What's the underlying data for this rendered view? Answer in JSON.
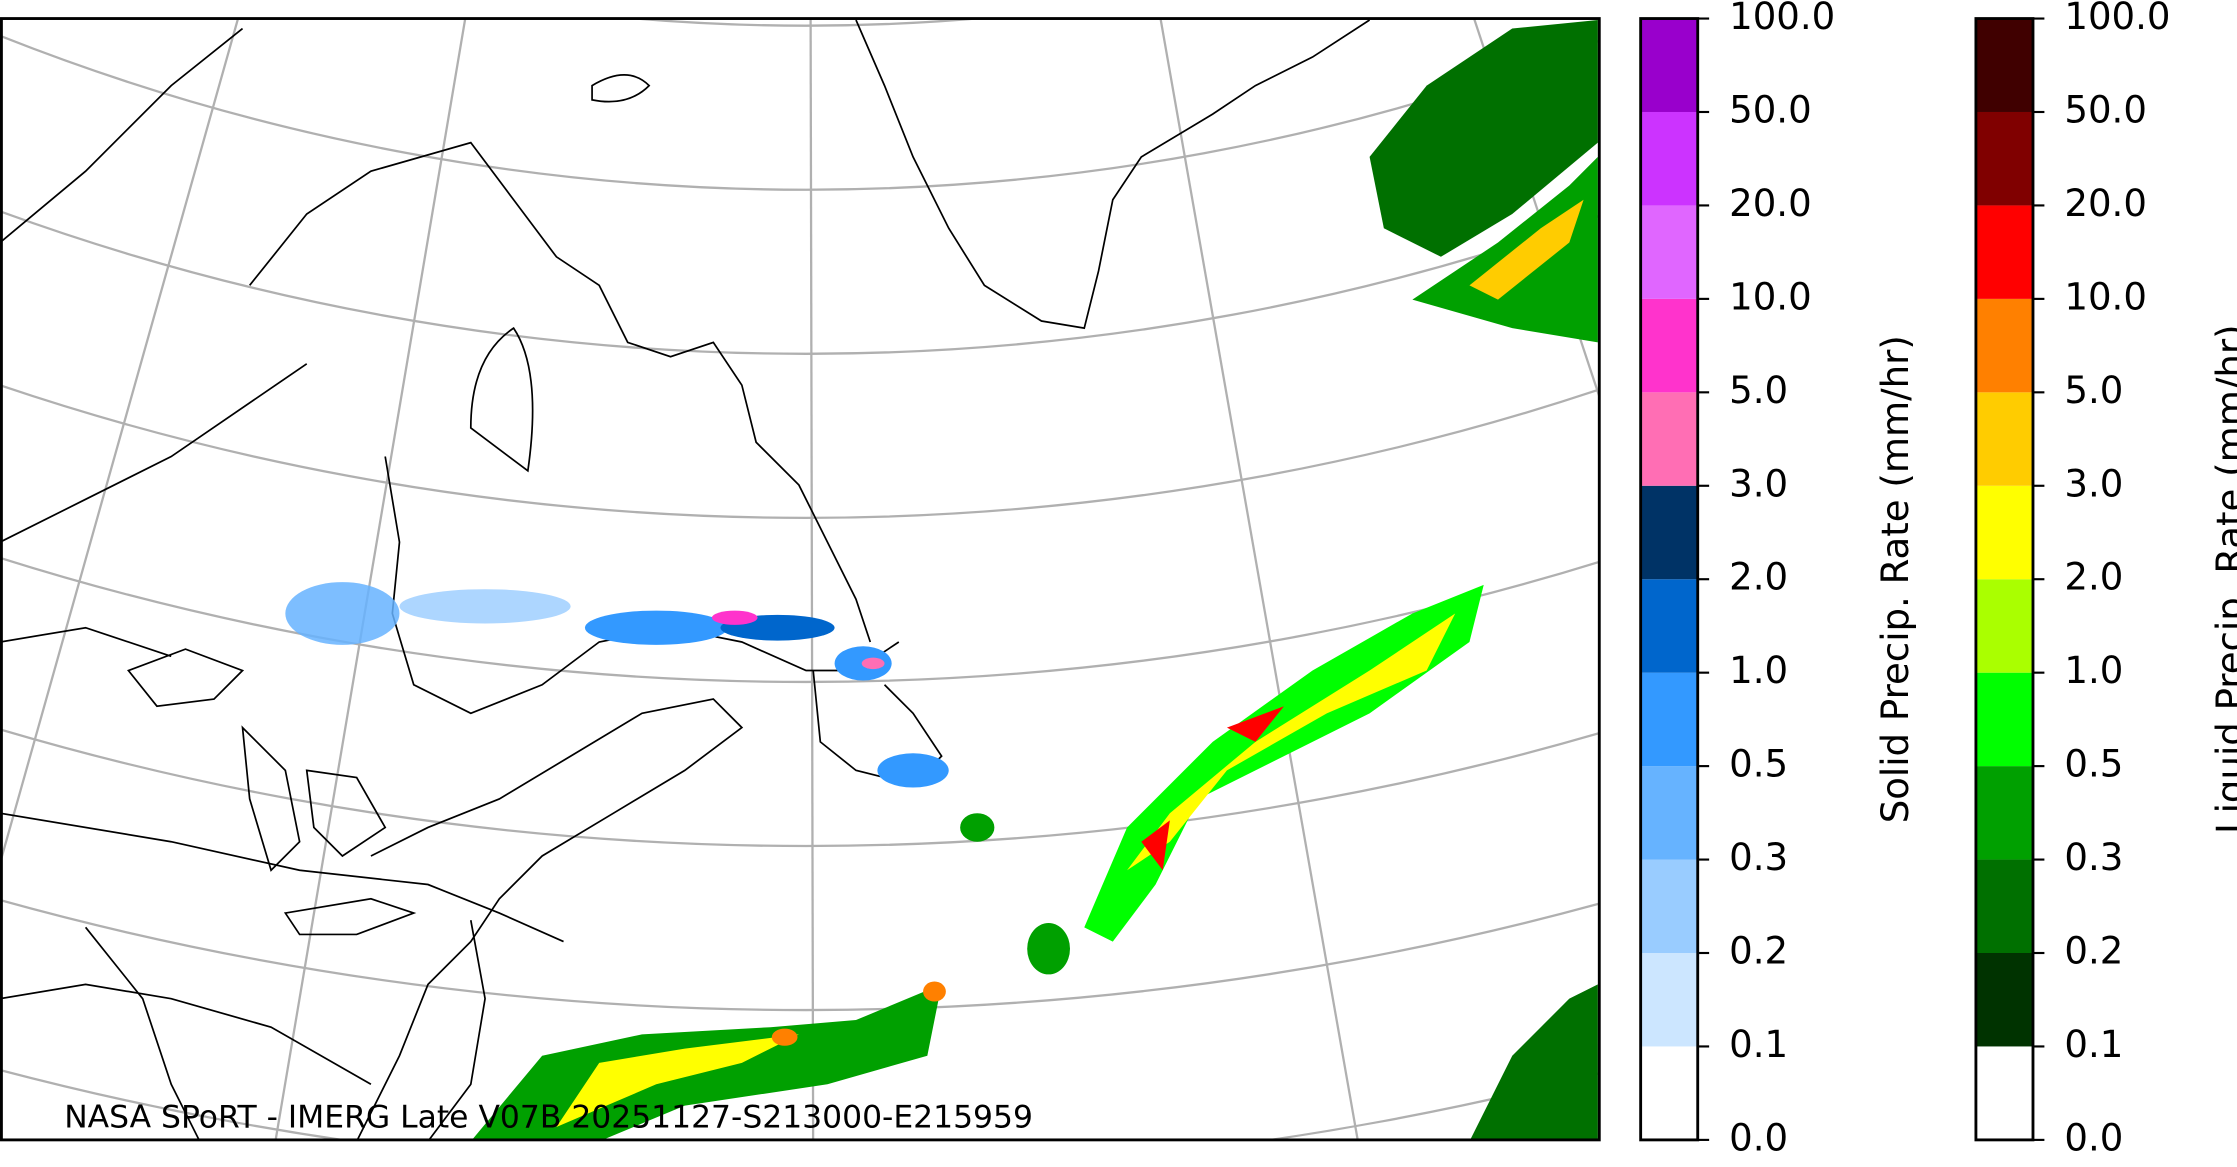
{
  "caption": "NASA SPoRT - IMERG Late V07B 20251127-S213000-E215959",
  "colorbars": [
    {
      "label": "Solid Precip. Rate (mm/hr)",
      "ticks": [
        {
          "value": 0,
          "label": "0.0"
        },
        {
          "value": 0.1,
          "label": "0.1"
        },
        {
          "value": 0.2,
          "label": "0.2"
        },
        {
          "value": 0.3,
          "label": "0.3"
        },
        {
          "value": 0.5,
          "label": "0.5"
        },
        {
          "value": 1,
          "label": "1.0"
        },
        {
          "value": 2,
          "label": "2.0"
        },
        {
          "value": 3,
          "label": "3.0"
        },
        {
          "value": 5,
          "label": "5.0"
        },
        {
          "value": 10,
          "label": "10.0"
        },
        {
          "value": 20,
          "label": "20.0"
        },
        {
          "value": 50,
          "label": "50.0"
        },
        {
          "value": 100,
          "label": "100.0"
        }
      ],
      "colors": [
        "#ffffff",
        "#cce6ff",
        "#99ccff",
        "#66b3ff",
        "#3399ff",
        "#0066cc",
        "#003366",
        "#ff6eb4",
        "#ff33cc",
        "#e066ff",
        "#cc33ff",
        "#9900cc"
      ]
    },
    {
      "label": "Liquid Precip. Rate (mm/hr)",
      "ticks": [
        {
          "value": 0,
          "label": "0.0"
        },
        {
          "value": 0.1,
          "label": "0.1"
        },
        {
          "value": 0.2,
          "label": "0.2"
        },
        {
          "value": 0.3,
          "label": "0.3"
        },
        {
          "value": 0.5,
          "label": "0.5"
        },
        {
          "value": 1,
          "label": "1.0"
        },
        {
          "value": 2,
          "label": "2.0"
        },
        {
          "value": 3,
          "label": "3.0"
        },
        {
          "value": 5,
          "label": "5.0"
        },
        {
          "value": 10,
          "label": "10.0"
        },
        {
          "value": 20,
          "label": "20.0"
        },
        {
          "value": 50,
          "label": "50.0"
        },
        {
          "value": 100,
          "label": "100.0"
        }
      ],
      "colors": [
        "#ffffff",
        "#003300",
        "#007000",
        "#00a000",
        "#00ff00",
        "#aaff00",
        "#ffff00",
        "#ffcc00",
        "#ff8000",
        "#ff0000",
        "#800000",
        "#400000"
      ]
    }
  ]
}
